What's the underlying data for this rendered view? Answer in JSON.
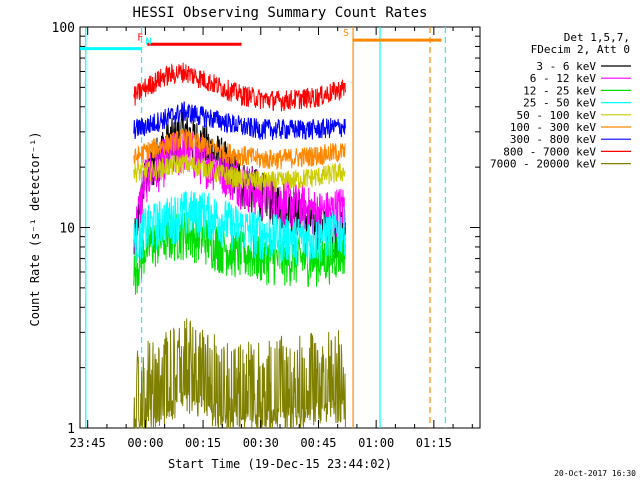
{
  "chart_data": {
    "type": "line",
    "title": "HESSI Observing Summary Count Rates",
    "xlabel": "Start Time (19-Dec-15 23:44:02)",
    "ylabel": "Count Rate (s⁻¹ detector⁻¹)",
    "x_unit": "minutes",
    "xlim": [
      -17,
      87
    ],
    "ylim": [
      1,
      100
    ],
    "yscale": "log",
    "grid": false,
    "legend_position": "top-right",
    "x_ticks": [
      {
        "value": -15,
        "label": "23:45"
      },
      {
        "value": 0,
        "label": "00:00"
      },
      {
        "value": 15,
        "label": "00:15"
      },
      {
        "value": 30,
        "label": "00:30"
      },
      {
        "value": 45,
        "label": "00:45"
      },
      {
        "value": 60,
        "label": "01:00"
      },
      {
        "value": 75,
        "label": "01:15"
      }
    ],
    "y_ticks": [
      {
        "value": 1,
        "label": "1"
      },
      {
        "value": 10,
        "label": "10"
      },
      {
        "value": 100,
        "label": "100"
      }
    ],
    "legend_header": [
      "Det 1,5,7,",
      "FDecim 2, Att 0"
    ],
    "series": [
      {
        "name": "3 - 6 keV",
        "color": "#000000",
        "x": [
          -3,
          0,
          5,
          10,
          15,
          20,
          25,
          30,
          35,
          40,
          45,
          48,
          52
        ],
        "y": [
          8,
          18,
          26,
          30,
          26,
          22,
          17,
          15,
          13,
          12,
          10,
          9.5,
          10
        ]
      },
      {
        "name": "6 - 12 keV",
        "color": "#ff00ff",
        "x": [
          -3,
          0,
          5,
          10,
          15,
          20,
          25,
          30,
          35,
          40,
          45,
          48,
          52
        ],
        "y": [
          9,
          18,
          22,
          25,
          22,
          20,
          17,
          15,
          14,
          13,
          12,
          12,
          13
        ]
      },
      {
        "name": "12 - 25 keV",
        "color": "#00dd00",
        "x": [
          -3,
          0,
          5,
          10,
          15,
          20,
          25,
          30,
          35,
          40,
          45,
          48,
          52
        ],
        "y": [
          6,
          8,
          9,
          9.5,
          9,
          8,
          7.5,
          7.2,
          7,
          7,
          7,
          7.2,
          8
        ]
      },
      {
        "name": "25 - 50 keV",
        "color": "#00ffff",
        "x": [
          -3,
          0,
          5,
          10,
          15,
          20,
          25,
          30,
          35,
          40,
          45,
          48,
          52
        ],
        "y": [
          8.5,
          10,
          11,
          12,
          12,
          11,
          10,
          9.5,
          9,
          9,
          9,
          9.5,
          10
        ]
      },
      {
        "name": "50 - 100 keV",
        "color": "#cccc00",
        "x": [
          -3,
          0,
          5,
          10,
          15,
          20,
          25,
          30,
          35,
          40,
          45,
          48,
          52
        ],
        "y": [
          19,
          19,
          20,
          21,
          20,
          18.5,
          17.5,
          17,
          17,
          17.5,
          18,
          18.5,
          19
        ]
      },
      {
        "name": "100 - 300 keV",
        "color": "#ff8800",
        "x": [
          -3,
          0,
          5,
          10,
          15,
          20,
          25,
          30,
          35,
          40,
          45,
          48,
          52
        ],
        "y": [
          22,
          24,
          26,
          28,
          26,
          24,
          23,
          22,
          22,
          22.5,
          23,
          23.5,
          24
        ]
      },
      {
        "name": "300 - 800 keV",
        "color": "#0000ff",
        "x": [
          -3,
          0,
          5,
          10,
          15,
          20,
          25,
          30,
          35,
          40,
          45,
          48,
          52
        ],
        "y": [
          31,
          32,
          35,
          38,
          36,
          34,
          32,
          31,
          31,
          31,
          31,
          31.5,
          32
        ]
      },
      {
        "name": "800 - 7000 keV",
        "color": "#ff0000",
        "x": [
          -3,
          0,
          5,
          10,
          15,
          20,
          25,
          30,
          35,
          40,
          45,
          48,
          52
        ],
        "y": [
          45,
          50,
          57,
          60,
          55,
          50,
          46,
          44,
          43,
          44,
          45,
          47,
          50
        ]
      },
      {
        "name": "7000 - 20000 keV",
        "color": "#808000",
        "x": [
          -3,
          0,
          5,
          10,
          15,
          20,
          25,
          30,
          35,
          40,
          45,
          48,
          52
        ],
        "y": [
          1.4,
          1.5,
          1.7,
          2.0,
          1.8,
          1.6,
          1.5,
          1.5,
          1.6,
          1.6,
          1.7,
          1.7,
          1.8
        ]
      }
    ],
    "flag_bars": [
      {
        "label": "F",
        "color": "#ff0000",
        "x_start": 0.5,
        "x_end": 25,
        "y": 82
      },
      {
        "label": "N",
        "color": "#00ffff",
        "x_start": -17,
        "x_end": -1,
        "y": 78
      },
      {
        "label": "S",
        "color": "#ff8800",
        "x_start": 54,
        "x_end": 77,
        "y": 86
      }
    ],
    "vertical_markers": [
      {
        "x": -1,
        "color": "#00ffff",
        "style": "dashed"
      },
      {
        "x": -15.5,
        "color": "#00ffff",
        "style": "solid"
      },
      {
        "x": 54,
        "color": "#ff8800",
        "style": "solid"
      },
      {
        "x": 61,
        "color": "#00ffff",
        "style": "solid"
      },
      {
        "x": 74,
        "color": "#ff8800",
        "style": "dashed"
      },
      {
        "x": 78,
        "color": "#00ffff",
        "style": "dashed"
      }
    ],
    "footer_date": "20-Oct-2017 16:30"
  }
}
